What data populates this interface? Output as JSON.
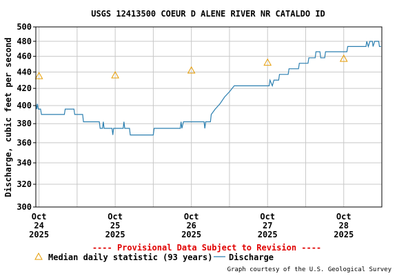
{
  "chart_data": {
    "type": "line",
    "title": "USGS 12413500 COEUR D ALENE RIVER NR CATALDO ID",
    "ylabel": "Discharge, cubic feet per second",
    "xlabel": "",
    "ylim": [
      300,
      500
    ],
    "y_scale": "log",
    "y_ticks": [
      300,
      320,
      340,
      360,
      380,
      400,
      420,
      440,
      460,
      480,
      500
    ],
    "xlim": [
      "2025-10-23 23:00",
      "2025-10-28 12:00"
    ],
    "x_ticks": [
      {
        "time": "2025-10-24 00:00",
        "month": "Oct",
        "day": "24",
        "year": "2025"
      },
      {
        "time": "2025-10-25 00:00",
        "month": "Oct",
        "day": "25",
        "year": "2025"
      },
      {
        "time": "2025-10-26 00:00",
        "month": "Oct",
        "day": "26",
        "year": "2025"
      },
      {
        "time": "2025-10-27 00:00",
        "month": "Oct",
        "day": "27",
        "year": "2025"
      },
      {
        "time": "2025-10-28 00:00",
        "month": "Oct",
        "day": "28",
        "year": "2025"
      }
    ],
    "grid": true,
    "legend_placement": "bottom",
    "series": [
      {
        "name": "Discharge",
        "style": "line",
        "color": "#2b7fb0",
        "points": [
          [
            "2025-10-23 23:00",
            402
          ],
          [
            "2025-10-23 23:15",
            396
          ],
          [
            "2025-10-23 23:30",
            402
          ],
          [
            "2025-10-23 23:45",
            396
          ],
          [
            "2025-10-24 00:30",
            396
          ],
          [
            "2025-10-24 00:45",
            390
          ],
          [
            "2025-10-24 01:00",
            390
          ],
          [
            "2025-10-24 08:00",
            390
          ],
          [
            "2025-10-24 08:15",
            396
          ],
          [
            "2025-10-24 11:00",
            396
          ],
          [
            "2025-10-24 11:15",
            390
          ],
          [
            "2025-10-24 13:45",
            390
          ],
          [
            "2025-10-24 14:00",
            382
          ],
          [
            "2025-10-24 19:00",
            382
          ],
          [
            "2025-10-24 19:15",
            375
          ],
          [
            "2025-10-24 20:00",
            375
          ],
          [
            "2025-10-24 20:15",
            382
          ],
          [
            "2025-10-24 20:30",
            375
          ],
          [
            "2025-10-24 23:00",
            375
          ],
          [
            "2025-10-24 23:15",
            368
          ],
          [
            "2025-10-24 23:30",
            375
          ],
          [
            "2025-10-25 02:30",
            375
          ],
          [
            "2025-10-25 02:45",
            382
          ],
          [
            "2025-10-25 03:00",
            375
          ],
          [
            "2025-10-25 04:30",
            375
          ],
          [
            "2025-10-25 04:45",
            368
          ],
          [
            "2025-10-25 12:00",
            368
          ],
          [
            "2025-10-25 12:15",
            375
          ],
          [
            "2025-10-25 20:30",
            375
          ],
          [
            "2025-10-25 20:45",
            382
          ],
          [
            "2025-10-25 21:00",
            375
          ],
          [
            "2025-10-25 21:30",
            382
          ],
          [
            "2025-10-26 04:00",
            382
          ],
          [
            "2025-10-26 04:15",
            375
          ],
          [
            "2025-10-26 04:30",
            382
          ],
          [
            "2025-10-26 06:00",
            382
          ],
          [
            "2025-10-26 06:15",
            390
          ],
          [
            "2025-10-26 07:30",
            396
          ],
          [
            "2025-10-26 09:00",
            402
          ],
          [
            "2025-10-26 10:30",
            410
          ],
          [
            "2025-10-26 12:00",
            416
          ],
          [
            "2025-10-26 13:30",
            423
          ],
          [
            "2025-10-26 23:00",
            423
          ],
          [
            "2025-10-27 00:30",
            423
          ],
          [
            "2025-10-27 00:45",
            430
          ],
          [
            "2025-10-27 01:30",
            423
          ],
          [
            "2025-10-27 02:00",
            430
          ],
          [
            "2025-10-27 03:30",
            430
          ],
          [
            "2025-10-27 03:45",
            437
          ],
          [
            "2025-10-27 06:30",
            437
          ],
          [
            "2025-10-27 06:45",
            444
          ],
          [
            "2025-10-27 09:45",
            444
          ],
          [
            "2025-10-27 10:00",
            451
          ],
          [
            "2025-10-27 12:45",
            451
          ],
          [
            "2025-10-27 13:00",
            458
          ],
          [
            "2025-10-27 15:00",
            458
          ],
          [
            "2025-10-27 15:15",
            466
          ],
          [
            "2025-10-27 16:30",
            466
          ],
          [
            "2025-10-27 16:45",
            458
          ],
          [
            "2025-10-27 18:00",
            458
          ],
          [
            "2025-10-27 18:15",
            466
          ],
          [
            "2025-10-28 01:00",
            466
          ],
          [
            "2025-10-28 01:15",
            473
          ],
          [
            "2025-10-28 07:00",
            473
          ],
          [
            "2025-10-28 07:15",
            480
          ],
          [
            "2025-10-28 07:45",
            473
          ],
          [
            "2025-10-28 08:15",
            480
          ],
          [
            "2025-10-28 09:00",
            480
          ],
          [
            "2025-10-28 09:15",
            473
          ],
          [
            "2025-10-28 09:45",
            480
          ],
          [
            "2025-10-28 11:00",
            480
          ],
          [
            "2025-10-28 11:15",
            473
          ],
          [
            "2025-10-28 11:45",
            473
          ]
        ]
      },
      {
        "name": "Median daily statistic (93 years)",
        "style": "triangle-markers",
        "color": "#e69b00",
        "points": [
          [
            "2025-10-24 00:00",
            435
          ],
          [
            "2025-10-25 00:00",
            436
          ],
          [
            "2025-10-26 00:00",
            442
          ],
          [
            "2025-10-27 00:00",
            452
          ],
          [
            "2025-10-28 00:00",
            457
          ]
        ]
      }
    ]
  },
  "notice": "---- Provisional Data Subject to Revision ----",
  "notice_color": "#e00000",
  "credit": "Graph courtesy of the U.S. Geological Survey"
}
